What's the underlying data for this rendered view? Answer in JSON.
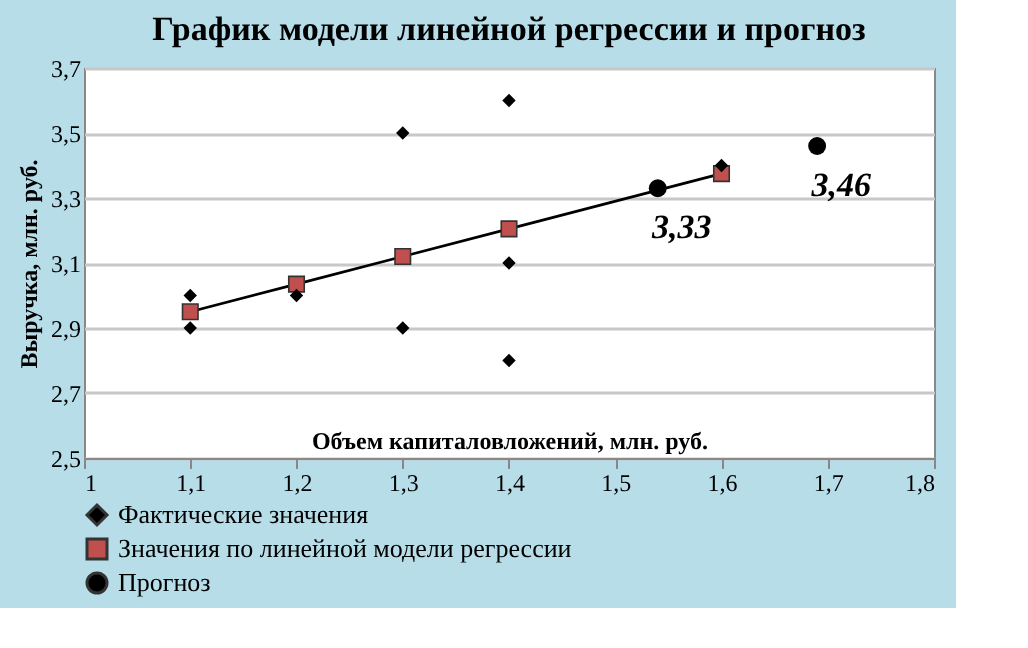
{
  "chart_data": {
    "type": "scatter",
    "title": "График модели линейной регрессии и прогноз",
    "xlabel": "Объем капиталовложений, млн. руб.",
    "ylabel": "Выручка, млн. руб.",
    "xlim": [
      1,
      1.8
    ],
    "ylim": [
      2.5,
      3.7
    ],
    "xticks": [
      1,
      {
        "value": 1.1,
        "label": "1,1"
      },
      {
        "value": 1.2,
        "label": "1,2"
      },
      {
        "value": 1.3,
        "label": "1,3"
      },
      {
        "value": 1.4,
        "label": "1,4"
      },
      {
        "value": 1.5,
        "label": "1,5"
      },
      {
        "value": 1.6,
        "label": "1,6"
      },
      {
        "value": 1.7,
        "label": "1,7"
      },
      {
        "value": 1.8,
        "label": "1,8"
      }
    ],
    "yticks": [
      {
        "value": 2.5,
        "label": "2,5"
      },
      {
        "value": 2.7,
        "label": "2,7"
      },
      {
        "value": 2.9,
        "label": "2,9"
      },
      {
        "value": 3.1,
        "label": "3,1"
      },
      {
        "value": 3.3,
        "label": "3,3"
      },
      {
        "value": 3.5,
        "label": "3,5"
      },
      {
        "value": 3.7,
        "label": "3,7"
      }
    ],
    "grid": "y",
    "legend": "bottom",
    "series": [
      {
        "name": "Фактические значения",
        "marker": "diamond",
        "color": "#000000",
        "x": [
          1.1,
          1.1,
          1.2,
          1.3,
          1.3,
          1.4,
          1.4,
          1.4,
          1.6
        ],
        "values": [
          3.0,
          2.9,
          3.0,
          3.5,
          2.9,
          3.6,
          3.1,
          2.8,
          3.4
        ]
      },
      {
        "name": "Значения по линейной модели регрессии",
        "type": "line",
        "marker": "square",
        "color": "#c0504d",
        "x": [
          1.1,
          1.2,
          1.3,
          1.4,
          1.6
        ],
        "values": [
          2.95,
          3.035,
          3.12,
          3.205,
          3.375
        ]
      },
      {
        "name": "Прогноз",
        "marker": "circle",
        "color": "#000000",
        "x": [
          1.54,
          1.69
        ],
        "values": [
          3.33,
          3.46
        ],
        "value_labels": [
          "3,33",
          "3,46"
        ]
      }
    ]
  }
}
